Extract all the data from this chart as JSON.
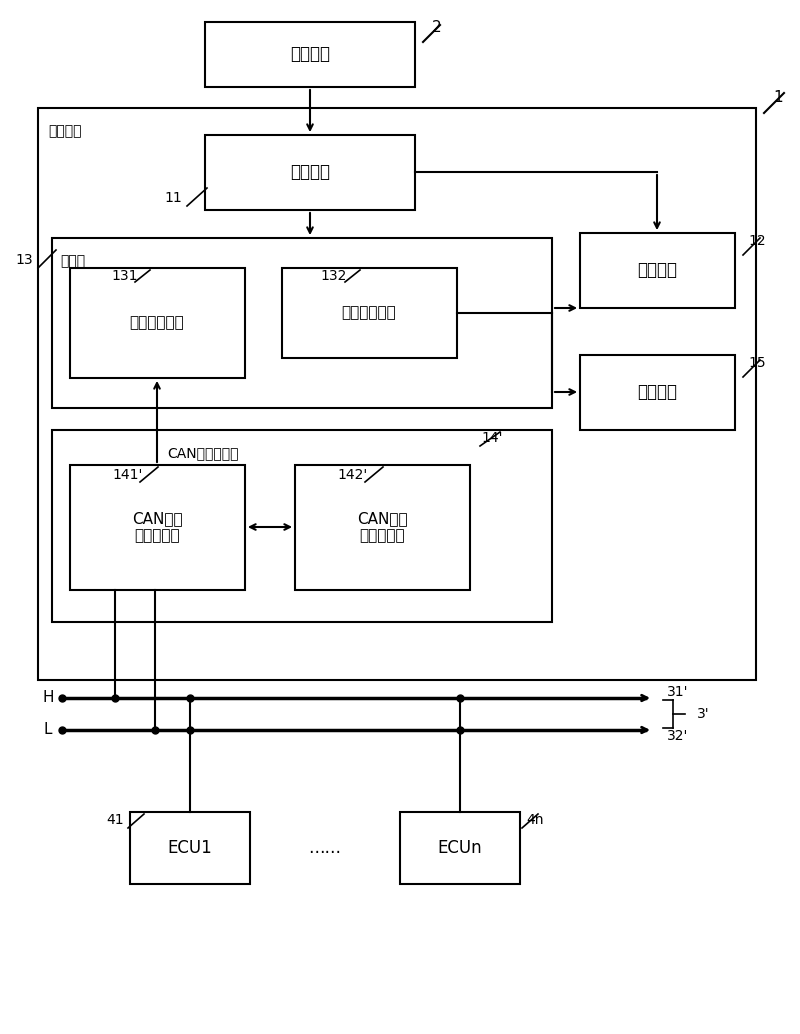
{
  "fig_width": 8.0,
  "fig_height": 10.34,
  "bg_color": "#ffffff",
  "labels": {
    "car_power": "汽车电源",
    "power_module": "电源模块",
    "controller": "控制器",
    "ctrl_unit1": "第一控制单元",
    "ctrl_unit2": "第二控制单元",
    "display_module": "显示模块",
    "app_module": "应用模块",
    "can_controller": "CAN总线控制器",
    "can_transceiver": "CAN总线\n信息收发器",
    "can_parser": "CAN总线\n信息解析器",
    "ecu1": "ECU1",
    "ecun": "ECUn",
    "ellipsis": "……",
    "vehicle_terminal": "车载终端",
    "H": "H",
    "L": "L",
    "num_2": "2",
    "num_1": "1",
    "num_11": "11",
    "num_12": "12",
    "num_13": "13",
    "num_131": "131",
    "num_132": "132",
    "num_14p": "14'",
    "num_141p": "141'",
    "num_142p": "142'",
    "num_15": "15",
    "num_31p": "31'",
    "num_32p": "32'",
    "num_3p": "3'",
    "num_41": "41",
    "num_4n": "4n"
  }
}
